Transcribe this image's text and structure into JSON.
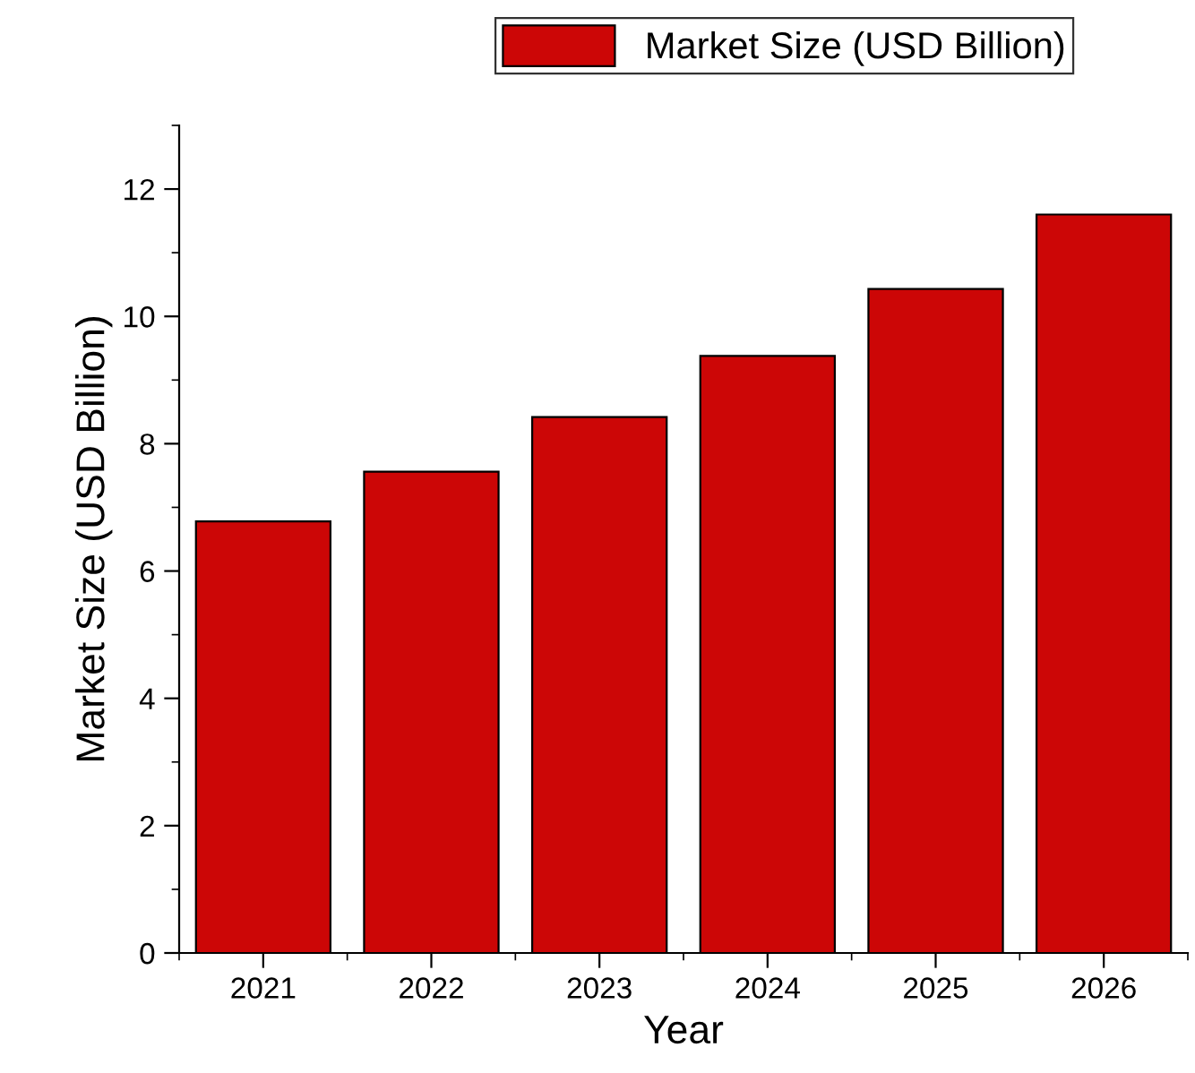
{
  "chart_data": {
    "type": "bar",
    "xlabel": "Year",
    "ylabel": "Market Size (USD Billion)",
    "categories": [
      "2021",
      "2022",
      "2023",
      "2024",
      "2025",
      "2026"
    ],
    "series": [
      {
        "name": "Market Size (USD Billion)",
        "color": "#cc0606",
        "values": [
          6.78,
          7.56,
          8.42,
          9.38,
          10.43,
          11.6
        ]
      }
    ],
    "ylim": [
      0,
      13
    ],
    "yticks": [
      0,
      2,
      4,
      6,
      8,
      10,
      12
    ],
    "grid": false,
    "legend": "top"
  }
}
